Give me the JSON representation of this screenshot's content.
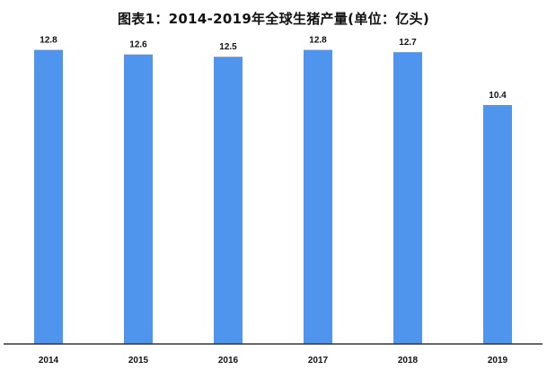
{
  "chart_data": {
    "type": "bar",
    "title": "图表1：2014-2019年全球生猪产量(单位：亿头)",
    "categories": [
      "2014",
      "2015",
      "2016",
      "2017",
      "2018",
      "2019"
    ],
    "values": [
      12.8,
      12.6,
      12.5,
      12.8,
      12.7,
      10.4
    ],
    "data_labels": [
      "12.8",
      "12.6",
      "12.5",
      "12.8",
      "12.7",
      "10.4"
    ],
    "ylim": [
      0,
      14.15
    ],
    "grid": false,
    "legend": "none",
    "bar_color": "#4f95ee",
    "axis_color": "#333333"
  }
}
